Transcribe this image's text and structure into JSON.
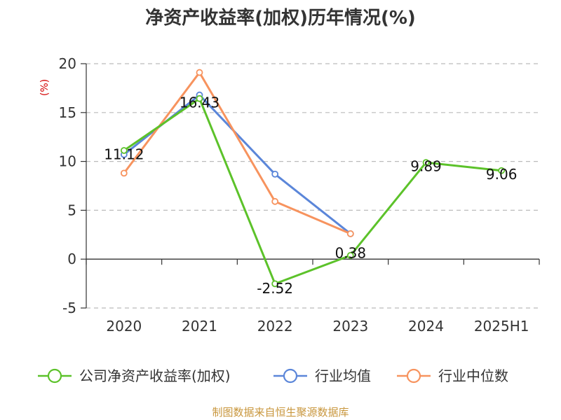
{
  "chart_data": {
    "type": "line",
    "title": "净资产收益率(加权)历年情况(%)",
    "ylabel": "(%)",
    "xlabel": "",
    "categories": [
      "2020",
      "2021",
      "2022",
      "2023",
      "2024",
      "2025H1"
    ],
    "ylim": [
      -5,
      20
    ],
    "yticks": [
      -5,
      0,
      5,
      10,
      15,
      20
    ],
    "grid": true,
    "legend_position": "bottom",
    "series": [
      {
        "name": "公司净资产收益率(加权)",
        "color": "#5cc22a",
        "values": [
          11.12,
          16.43,
          -2.52,
          0.38,
          9.89,
          9.06
        ],
        "labels": [
          "11.12",
          "16.43",
          "-2.52",
          "0.38",
          "9.89",
          "9.06"
        ]
      },
      {
        "name": "行业均值",
        "color": "#5b86d9",
        "values": [
          10.7,
          16.8,
          8.7,
          2.6,
          null,
          null
        ]
      },
      {
        "name": "行业中位数",
        "color": "#f7935e",
        "values": [
          8.8,
          19.1,
          5.9,
          2.6,
          null,
          null
        ]
      }
    ]
  },
  "footer": "制图数据来自恒生聚源数据库"
}
